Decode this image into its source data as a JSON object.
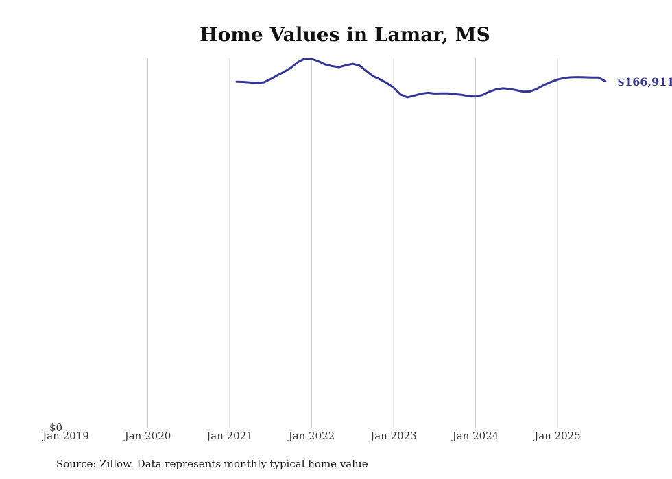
{
  "chart_data": {
    "type": "line",
    "title": "Home Values in Lamar, MS",
    "xlabel": "",
    "ylabel": "",
    "x_ticks": [
      "Jan 2019",
      "Jan 2020",
      "Jan 2021",
      "Jan 2022",
      "Jan 2023",
      "Jan 2024",
      "Jan 2025"
    ],
    "y_ticks": [
      "$0"
    ],
    "ylim": [
      0,
      178000
    ],
    "grid": "vertical",
    "legend": "none",
    "line_color": "#353597",
    "series": [
      {
        "x": [
          "2021-02",
          "2021-03",
          "2021-04",
          "2021-05",
          "2021-06",
          "2021-07",
          "2021-08",
          "2021-09",
          "2021-10",
          "2021-11",
          "2021-12",
          "2022-01",
          "2022-02",
          "2022-03",
          "2022-04",
          "2022-05",
          "2022-06",
          "2022-07",
          "2022-08",
          "2022-09",
          "2022-10",
          "2022-11",
          "2022-12",
          "2023-01",
          "2023-02",
          "2023-03",
          "2023-04",
          "2023-05",
          "2023-06",
          "2023-07",
          "2023-08",
          "2023-09",
          "2023-10",
          "2023-11",
          "2023-12",
          "2024-01",
          "2024-02",
          "2024-03",
          "2024-04",
          "2024-05",
          "2024-06",
          "2024-07",
          "2024-08",
          "2024-09",
          "2024-10",
          "2024-11",
          "2024-12",
          "2025-01",
          "2025-02",
          "2025-03",
          "2025-04",
          "2025-05",
          "2025-06",
          "2025-07",
          "2025-08"
        ],
        "values": [
          166700,
          166600,
          166300,
          166100,
          166400,
          168000,
          169800,
          171500,
          173500,
          176200,
          177800,
          177700,
          176500,
          175000,
          174200,
          173700,
          174600,
          175300,
          174500,
          171900,
          169300,
          167800,
          166100,
          163800,
          160600,
          159200,
          160000,
          160900,
          161400,
          161000,
          161100,
          161100,
          160700,
          160400,
          159700,
          159600,
          160300,
          161900,
          163000,
          163500,
          163200,
          162600,
          161900,
          162000,
          163300,
          165100,
          166500,
          167700,
          168500,
          168800,
          168900,
          168800,
          168700,
          168700,
          166911
        ]
      }
    ],
    "end_label": "$166,911",
    "source": "Source: Zillow. Data represents monthly typical home value"
  }
}
